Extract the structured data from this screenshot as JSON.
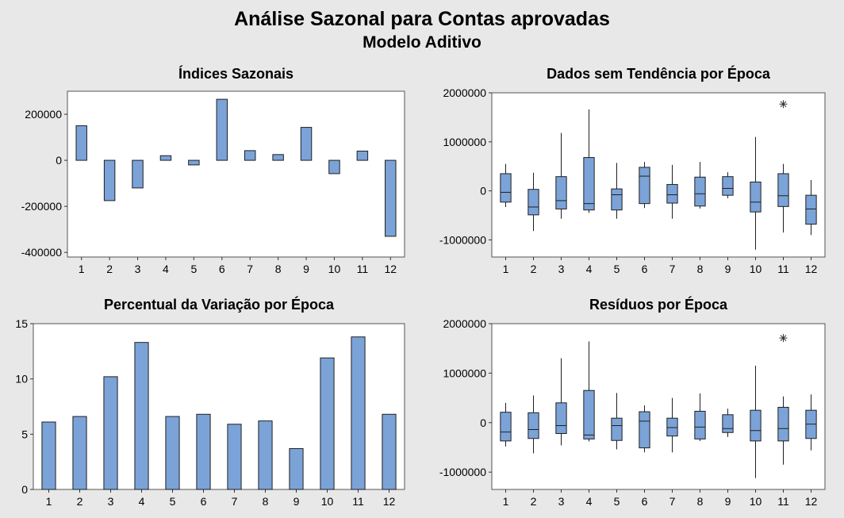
{
  "title": "Análise Sazonal para Contas aprovadas",
  "subtitle": "Modelo Aditivo",
  "colors": {
    "fill": "#7ba3d8",
    "stroke": "#1f1f1f",
    "plot_bg": "#ffffff",
    "page_bg": "#e8e8e8"
  },
  "chart_data": [
    {
      "id": "indices",
      "type": "bar",
      "title": "Índices Sazonais",
      "categories": [
        "1",
        "2",
        "3",
        "4",
        "5",
        "6",
        "7",
        "8",
        "9",
        "10",
        "11",
        "12"
      ],
      "values": [
        150000,
        -175000,
        -120000,
        20000,
        -20000,
        265000,
        42000,
        25000,
        143000,
        -58000,
        40000,
        -330000
      ],
      "ylim": [
        -420000,
        300000
      ],
      "yticks": [
        200000,
        0,
        -200000,
        -400000
      ],
      "ytick_labels": [
        "200000",
        "0",
        "-200000",
        "-400000"
      ]
    },
    {
      "id": "detrended",
      "type": "boxplot",
      "title": "Dados sem Tendência por Época",
      "categories": [
        "1",
        "2",
        "3",
        "4",
        "5",
        "6",
        "7",
        "8",
        "9",
        "10",
        "11",
        "12"
      ],
      "boxes": [
        {
          "min": -330000,
          "q1": -230000,
          "median": -30000,
          "q3": 350000,
          "max": 550000
        },
        {
          "min": -820000,
          "q1": -490000,
          "median": -330000,
          "q3": 30000,
          "max": 370000
        },
        {
          "min": -570000,
          "q1": -370000,
          "median": -200000,
          "q3": 290000,
          "max": 1180000
        },
        {
          "min": -450000,
          "q1": -390000,
          "median": -260000,
          "q3": 680000,
          "max": 1660000
        },
        {
          "min": -570000,
          "q1": -390000,
          "median": -80000,
          "q3": 40000,
          "max": 570000
        },
        {
          "min": -350000,
          "q1": -260000,
          "median": 300000,
          "q3": 480000,
          "max": 590000
        },
        {
          "min": -570000,
          "q1": -250000,
          "median": -80000,
          "q3": 130000,
          "max": 530000
        },
        {
          "min": -360000,
          "q1": -310000,
          "median": -60000,
          "q3": 280000,
          "max": 590000
        },
        {
          "min": -150000,
          "q1": -90000,
          "median": 50000,
          "q3": 290000,
          "max": 380000
        },
        {
          "min": -1200000,
          "q1": -430000,
          "median": -230000,
          "q3": 180000,
          "max": 1100000
        },
        {
          "min": -850000,
          "q1": -320000,
          "median": -100000,
          "q3": 350000,
          "max": 550000
        },
        {
          "min": -900000,
          "q1": -680000,
          "median": -370000,
          "q3": -90000,
          "max": 220000
        }
      ],
      "outliers": [
        {
          "x": "11",
          "y": 1770000
        }
      ],
      "ylim": [
        -1350000,
        2000000
      ],
      "yticks": [
        2000000,
        1000000,
        0,
        -1000000
      ],
      "ytick_labels": [
        "2000000",
        "1000000",
        "0",
        "-1000000"
      ]
    },
    {
      "id": "percent",
      "type": "bar",
      "title": "Percentual da Variação por Época",
      "categories": [
        "1",
        "2",
        "3",
        "4",
        "5",
        "6",
        "7",
        "8",
        "9",
        "10",
        "11",
        "12"
      ],
      "values": [
        6.1,
        6.6,
        10.2,
        13.3,
        6.6,
        6.8,
        5.9,
        6.2,
        3.7,
        11.9,
        13.8,
        6.8
      ],
      "ylim": [
        0,
        15
      ],
      "yticks": [
        15,
        10,
        5,
        0
      ],
      "ytick_labels": [
        "15",
        "10",
        "5",
        "0"
      ]
    },
    {
      "id": "residuals",
      "type": "boxplot",
      "title": "Resíduos por Época",
      "categories": [
        "1",
        "2",
        "3",
        "4",
        "5",
        "6",
        "7",
        "8",
        "9",
        "10",
        "11",
        "12"
      ],
      "boxes": [
        {
          "min": -480000,
          "q1": -370000,
          "median": -190000,
          "q3": 210000,
          "max": 400000
        },
        {
          "min": -620000,
          "q1": -320000,
          "median": -140000,
          "q3": 200000,
          "max": 550000
        },
        {
          "min": -460000,
          "q1": -220000,
          "median": -60000,
          "q3": 400000,
          "max": 1300000
        },
        {
          "min": -380000,
          "q1": -330000,
          "median": -250000,
          "q3": 650000,
          "max": 1640000
        },
        {
          "min": -540000,
          "q1": -360000,
          "median": -60000,
          "q3": 90000,
          "max": 600000
        },
        {
          "min": -600000,
          "q1": -510000,
          "median": 30000,
          "q3": 220000,
          "max": 350000
        },
        {
          "min": -600000,
          "q1": -270000,
          "median": -100000,
          "q3": 90000,
          "max": 500000
        },
        {
          "min": -370000,
          "q1": -330000,
          "median": -90000,
          "q3": 230000,
          "max": 590000
        },
        {
          "min": -290000,
          "q1": -200000,
          "median": -120000,
          "q3": 160000,
          "max": 280000
        },
        {
          "min": -1120000,
          "q1": -370000,
          "median": -160000,
          "q3": 250000,
          "max": 1150000
        },
        {
          "min": -850000,
          "q1": -370000,
          "median": -120000,
          "q3": 310000,
          "max": 530000
        },
        {
          "min": -560000,
          "q1": -320000,
          "median": -30000,
          "q3": 250000,
          "max": 570000
        }
      ],
      "outliers": [
        {
          "x": "11",
          "y": 1710000
        }
      ],
      "ylim": [
        -1350000,
        2000000
      ],
      "yticks": [
        2000000,
        1000000,
        0,
        -1000000
      ],
      "ytick_labels": [
        "2000000",
        "1000000",
        "0",
        "-1000000"
      ]
    }
  ]
}
